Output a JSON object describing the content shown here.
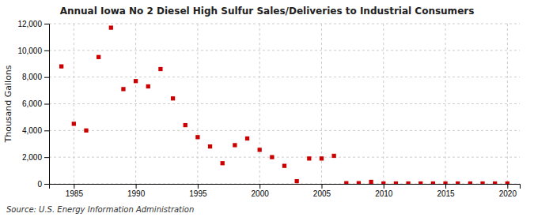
{
  "chart_data": {
    "type": "scatter",
    "title": "Annual Iowa No 2 Diesel High Sulfur Sales/Deliveries to Industrial Consumers",
    "ylabel": "Thousand Gallons",
    "annotations": [
      "Source: U.S. Energy Information Administration"
    ],
    "x": [
      1984,
      1985,
      1986,
      1987,
      1988,
      1989,
      1990,
      1991,
      1992,
      1993,
      1994,
      1995,
      1996,
      1997,
      1998,
      1999,
      2000,
      2001,
      2002,
      2003,
      2004,
      2005,
      2006,
      2007,
      2008,
      2009,
      2010,
      2011,
      2012,
      2013,
      2014,
      2015,
      2016,
      2017,
      2018,
      2019,
      2020
    ],
    "values": [
      8800,
      4500,
      4000,
      9500,
      11700,
      7100,
      7700,
      7300,
      8600,
      6400,
      4400,
      3500,
      2800,
      1550,
      2900,
      3400,
      2550,
      2000,
      1350,
      200,
      1900,
      1900,
      2100,
      50,
      50,
      150,
      30,
      30,
      30,
      30,
      30,
      30,
      30,
      30,
      30,
      30,
      30
    ],
    "color": "#cc0000",
    "marker": "square",
    "xlim": [
      1983,
      2021
    ],
    "xticks": [
      1985,
      1990,
      1995,
      2000,
      2005,
      2010,
      2015,
      2020
    ],
    "ylim": [
      0,
      12000
    ],
    "yticks": [
      0,
      {
        "value": 2000,
        "label": "2,000"
      },
      {
        "value": 4000,
        "label": "4,000"
      },
      {
        "value": 6000,
        "label": "6,000"
      },
      {
        "value": 8000,
        "label": "8,000"
      },
      {
        "value": 10000,
        "label": "10,000"
      },
      {
        "value": 12000,
        "label": "12,000"
      }
    ],
    "grid": true
  }
}
